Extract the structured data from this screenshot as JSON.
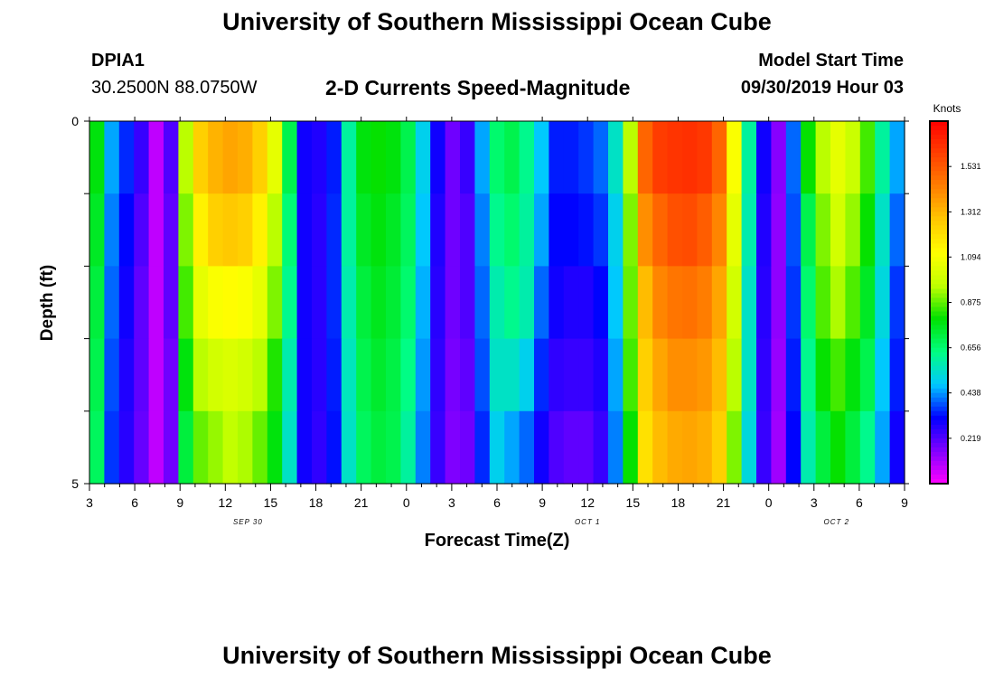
{
  "header": {
    "title": "University of Southern Mississippi Ocean Cube",
    "station_id": "DPIA1",
    "station_coords": "30.2500N 88.0750W",
    "subtitle": "2-D Currents Speed-Magnitude",
    "model_start_label": "Model Start Time",
    "model_start_value": "09/30/2019 Hour 03"
  },
  "footer": {
    "title": "University of Southern Mississippi Ocean Cube"
  },
  "chart_data": {
    "type": "heatmap",
    "title": "2-D Currents Speed-Magnitude",
    "xlabel": "Forecast Time(Z)",
    "ylabel": "Depth (ft)",
    "y_range": [
      0,
      5
    ],
    "y_tick_labels": [
      "0",
      "5"
    ],
    "x_range_hours": [
      0,
      54
    ],
    "x_tick_labels": [
      "3",
      "6",
      "9",
      "12",
      "15",
      "18",
      "21",
      "0",
      "3",
      "6",
      "9",
      "12",
      "15",
      "18",
      "21",
      "0",
      "3",
      "6",
      "9"
    ],
    "date_labels": [
      {
        "text": "SEP 30",
        "hour": 10.5
      },
      {
        "text": "OCT 1",
        "hour": 33
      },
      {
        "text": "OCT 2",
        "hour": 49.5
      }
    ],
    "colorbar": {
      "label": "Knots",
      "range": [
        0,
        1.75
      ],
      "tick_values": [
        0.219,
        0.438,
        0.656,
        0.875,
        1.094,
        1.312,
        1.531
      ],
      "tick_labels": [
        "0.219",
        "0.438",
        "0.656",
        "0.875",
        "1.094",
        "1.312",
        "1.531"
      ],
      "colors": [
        "#ff00ff",
        "#8000ff",
        "#0000ff",
        "#00c8ff",
        "#00ff80",
        "#00e000",
        "#c0ff00",
        "#ffff00",
        "#ffc800",
        "#ff8000",
        "#ff4000",
        "#ff0000"
      ]
    },
    "depth_levels": 5,
    "time_steps": 55,
    "speed_profiles": {
      "comment": "speed (knots) per hour 0..54, for depth rows top(0) to bottom(4)",
      "row0": [
        0.78,
        0.45,
        0.35,
        0.25,
        0.08,
        0.22,
        0.95,
        1.25,
        1.32,
        1.35,
        1.33,
        1.25,
        1.05,
        0.7,
        0.3,
        0.28,
        0.34,
        0.6,
        0.78,
        0.8,
        0.78,
        0.7,
        0.5,
        0.3,
        0.18,
        0.25,
        0.45,
        0.66,
        0.7,
        0.62,
        0.48,
        0.34,
        0.34,
        0.36,
        0.4,
        0.55,
        0.95,
        1.5,
        1.6,
        1.62,
        1.63,
        1.61,
        1.5,
        1.1,
        0.6,
        0.3,
        0.15,
        0.4,
        0.8,
        0.95,
        1.05,
        0.98,
        0.85,
        0.6,
        0.45
      ],
      "row1": [
        0.75,
        0.42,
        0.32,
        0.22,
        0.08,
        0.2,
        0.9,
        1.15,
        1.25,
        1.27,
        1.25,
        1.15,
        0.95,
        0.65,
        0.3,
        0.27,
        0.35,
        0.6,
        0.75,
        0.78,
        0.75,
        0.68,
        0.48,
        0.28,
        0.18,
        0.22,
        0.42,
        0.62,
        0.66,
        0.6,
        0.45,
        0.32,
        0.32,
        0.33,
        0.36,
        0.5,
        0.9,
        1.4,
        1.5,
        1.55,
        1.56,
        1.52,
        1.42,
        1.05,
        0.58,
        0.28,
        0.14,
        0.38,
        0.7,
        0.9,
        1.0,
        0.92,
        0.8,
        0.55,
        0.4
      ],
      "row2": [
        0.72,
        0.4,
        0.3,
        0.2,
        0.08,
        0.2,
        0.85,
        1.05,
        1.1,
        1.12,
        1.1,
        1.05,
        0.9,
        0.62,
        0.3,
        0.27,
        0.35,
        0.58,
        0.72,
        0.76,
        0.73,
        0.66,
        0.46,
        0.27,
        0.18,
        0.22,
        0.4,
        0.58,
        0.62,
        0.58,
        0.4,
        0.3,
        0.28,
        0.28,
        0.32,
        0.48,
        0.88,
        1.3,
        1.42,
        1.46,
        1.47,
        1.44,
        1.35,
        1.0,
        0.55,
        0.27,
        0.14,
        0.36,
        0.66,
        0.86,
        0.94,
        0.86,
        0.75,
        0.52,
        0.36
      ],
      "row3": [
        0.7,
        0.38,
        0.28,
        0.2,
        0.08,
        0.18,
        0.78,
        0.95,
        1.0,
        1.02,
        1.0,
        0.95,
        0.82,
        0.58,
        0.3,
        0.27,
        0.34,
        0.56,
        0.7,
        0.74,
        0.71,
        0.63,
        0.44,
        0.26,
        0.17,
        0.2,
        0.38,
        0.55,
        0.55,
        0.5,
        0.35,
        0.26,
        0.25,
        0.25,
        0.28,
        0.45,
        0.85,
        1.25,
        1.35,
        1.4,
        1.4,
        1.38,
        1.3,
        0.95,
        0.55,
        0.26,
        0.13,
        0.34,
        0.62,
        0.8,
        0.85,
        0.78,
        0.7,
        0.48,
        0.34
      ],
      "row4": [
        0.68,
        0.36,
        0.27,
        0.19,
        0.08,
        0.18,
        0.72,
        0.88,
        0.92,
        0.96,
        0.94,
        0.88,
        0.78,
        0.55,
        0.3,
        0.26,
        0.33,
        0.55,
        0.68,
        0.72,
        0.7,
        0.6,
        0.42,
        0.25,
        0.16,
        0.18,
        0.35,
        0.5,
        0.45,
        0.4,
        0.3,
        0.22,
        0.2,
        0.2,
        0.25,
        0.42,
        0.8,
        1.2,
        1.3,
        1.34,
        1.35,
        1.33,
        1.25,
        0.9,
        0.52,
        0.25,
        0.12,
        0.32,
        0.58,
        0.72,
        0.8,
        0.72,
        0.62,
        0.45,
        0.3
      ]
    }
  }
}
